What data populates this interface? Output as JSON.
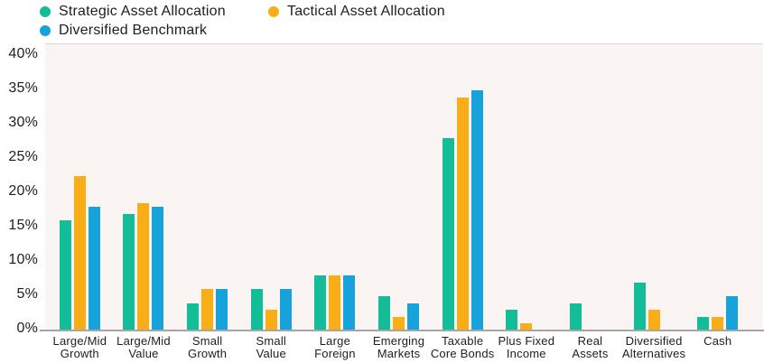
{
  "legend": {
    "items": [
      {
        "label": "Strategic Asset Allocation",
        "color": "#12bd97"
      },
      {
        "label": "Tactical Asset Allocation",
        "color": "#f9ae17"
      },
      {
        "label": "Diversified Benchmark",
        "color": "#16a3dc"
      }
    ]
  },
  "colors": {
    "strategic": "#12bd97",
    "tactical": "#f9ae17",
    "benchmark": "#16a3dc",
    "plot_background": "#faf4f2",
    "axis_line": "#a9a5a6",
    "text": "#1f1d1e"
  },
  "chart_data": {
    "type": "bar",
    "title": "",
    "xlabel": "",
    "ylabel": "",
    "ylim": [
      0,
      40
    ],
    "grid": false,
    "legend_position": "top-left",
    "y_ticks": [
      0,
      5,
      10,
      15,
      20,
      25,
      30,
      35,
      40
    ],
    "y_tick_labels": [
      "0%",
      "5%",
      "10%",
      "15%",
      "20%",
      "25%",
      "30%",
      "35%",
      "40%"
    ],
    "categories": [
      "Large/Mid Growth",
      "Large/Mid Value",
      "Small Growth",
      "Small Value",
      "Large Foreign",
      "Emerging Markets",
      "Taxable Core Bonds",
      "Plus Fixed Income",
      "Real Assets",
      "Diversified Alternatives",
      "Cash"
    ],
    "category_label_lines": [
      [
        "Large/Mid",
        "Growth"
      ],
      [
        "Large/Mid",
        "Value"
      ],
      [
        "Small",
        "Growth"
      ],
      [
        "Small",
        "Value"
      ],
      [
        "Large",
        "Foreign"
      ],
      [
        "Emerging",
        "Markets"
      ],
      [
        "Taxable",
        "Core Bonds"
      ],
      [
        "Plus Fixed",
        "Income"
      ],
      [
        "Real",
        "Assets"
      ],
      [
        "Diversified",
        "Alternatives"
      ],
      [
        "Cash"
      ]
    ],
    "series": [
      {
        "name": "Strategic Asset Allocation",
        "color": "#12bd97",
        "values": [
          16,
          17,
          4,
          6,
          8,
          5,
          28,
          3,
          4,
          7,
          2
        ]
      },
      {
        "name": "Tactical Asset Allocation",
        "color": "#f9ae17",
        "values": [
          22.5,
          18.5,
          6,
          3,
          8,
          2,
          34,
          1,
          0,
          3,
          2
        ]
      },
      {
        "name": "Diversified Benchmark",
        "color": "#16a3dc",
        "values": [
          18,
          18,
          6,
          6,
          8,
          4,
          35,
          0,
          0,
          0,
          5
        ]
      }
    ]
  }
}
